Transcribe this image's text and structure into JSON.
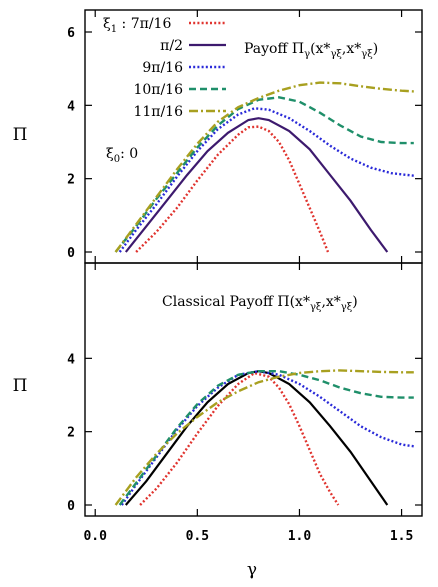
{
  "chart_data": [
    {
      "type": "line",
      "panel": "top",
      "title": "Payoff Π_γ(x*_γξ, x*_γξ)",
      "title_parts": {
        "main": "Payoff Π",
        "sub1": "γ",
        "args": "(x*",
        "sub2": "γξ",
        "mid": ",x*",
        "sub3": "γξ",
        "end": ")"
      },
      "annotation": {
        "prefix": "ξ",
        "sub": "0",
        "text": ": 0"
      },
      "xlabel": "γ",
      "ylabel": "Π",
      "xlim": [
        -0.05,
        1.6
      ],
      "ylim": [
        -0.3,
        6.6
      ],
      "yticks": [
        "0",
        "2",
        "4",
        "6"
      ],
      "legend_title": {
        "prefix": "ξ",
        "sub": "1",
        "text": " : 7π/16"
      },
      "legend_placement": "top-left",
      "series": [
        {
          "name": "7π/16",
          "color": "#e0342f",
          "style": "dotted",
          "points": [
            [
              0.2,
              0
            ],
            [
              0.3,
              0.55
            ],
            [
              0.4,
              1.2
            ],
            [
              0.5,
              1.95
            ],
            [
              0.6,
              2.65
            ],
            [
              0.7,
              3.2
            ],
            [
              0.75,
              3.4
            ],
            [
              0.8,
              3.42
            ],
            [
              0.85,
              3.3
            ],
            [
              0.9,
              3.0
            ],
            [
              0.95,
              2.5
            ],
            [
              1.0,
              1.85
            ],
            [
              1.05,
              1.2
            ],
            [
              1.1,
              0.55
            ],
            [
              1.14,
              0
            ]
          ]
        },
        {
          "name": "π/2",
          "color": "#3d1a6e",
          "style": "solid",
          "points": [
            [
              0.15,
              0
            ],
            [
              0.25,
              0.7
            ],
            [
              0.35,
              1.4
            ],
            [
              0.45,
              2.1
            ],
            [
              0.55,
              2.75
            ],
            [
              0.65,
              3.25
            ],
            [
              0.75,
              3.6
            ],
            [
              0.8,
              3.65
            ],
            [
              0.85,
              3.6
            ],
            [
              0.95,
              3.3
            ],
            [
              1.05,
              2.8
            ],
            [
              1.15,
              2.1
            ],
            [
              1.25,
              1.4
            ],
            [
              1.35,
              0.6
            ],
            [
              1.43,
              0
            ]
          ]
        },
        {
          "name": "9π/16",
          "color": "#2a2ad8",
          "style": "dotted",
          "points": [
            [
              0.12,
              0
            ],
            [
              0.2,
              0.6
            ],
            [
              0.3,
              1.3
            ],
            [
              0.4,
              2.05
            ],
            [
              0.5,
              2.75
            ],
            [
              0.6,
              3.35
            ],
            [
              0.7,
              3.75
            ],
            [
              0.78,
              3.92
            ],
            [
              0.85,
              3.88
            ],
            [
              0.95,
              3.65
            ],
            [
              1.05,
              3.3
            ],
            [
              1.15,
              2.9
            ],
            [
              1.25,
              2.55
            ],
            [
              1.35,
              2.3
            ],
            [
              1.45,
              2.15
            ],
            [
              1.56,
              2.08
            ]
          ]
        },
        {
          "name": "10π/16",
          "color": "#1f8f6a",
          "style": "dashed",
          "points": [
            [
              0.1,
              0
            ],
            [
              0.2,
              0.7
            ],
            [
              0.3,
              1.45
            ],
            [
              0.4,
              2.15
            ],
            [
              0.5,
              2.85
            ],
            [
              0.6,
              3.45
            ],
            [
              0.7,
              3.9
            ],
            [
              0.8,
              4.15
            ],
            [
              0.9,
              4.22
            ],
            [
              1.0,
              4.1
            ],
            [
              1.1,
              3.8
            ],
            [
              1.2,
              3.45
            ],
            [
              1.3,
              3.15
            ],
            [
              1.4,
              3.0
            ],
            [
              1.5,
              2.97
            ],
            [
              1.56,
              2.97
            ]
          ]
        },
        {
          "name": "11π/16",
          "color": "#a8a020",
          "style": "dashdot",
          "points": [
            [
              0.1,
              0
            ],
            [
              0.2,
              0.75
            ],
            [
              0.3,
              1.5
            ],
            [
              0.4,
              2.25
            ],
            [
              0.5,
              2.95
            ],
            [
              0.6,
              3.55
            ],
            [
              0.7,
              3.95
            ],
            [
              0.8,
              4.2
            ],
            [
              0.9,
              4.4
            ],
            [
              1.0,
              4.55
            ],
            [
              1.1,
              4.62
            ],
            [
              1.2,
              4.6
            ],
            [
              1.3,
              4.52
            ],
            [
              1.4,
              4.45
            ],
            [
              1.5,
              4.4
            ],
            [
              1.56,
              4.38
            ]
          ]
        }
      ]
    },
    {
      "type": "line",
      "panel": "bottom",
      "title": "Classical Payoff Π(x*_γξ, x*_γξ)",
      "title_parts": {
        "main": "Classical Payoff Π",
        "args": "(x*",
        "sub2": "γξ",
        "mid": ",x*",
        "sub3": "γξ",
        "end": ")"
      },
      "xlabel": "γ",
      "ylabel": "Π",
      "xlim": [
        -0.05,
        1.6
      ],
      "ylim": [
        -0.3,
        6.6
      ],
      "yticks": [
        "0",
        "2",
        "4"
      ],
      "xticks": [
        "0.0",
        "0.5",
        "1.0",
        "1.5"
      ],
      "series": [
        {
          "name": "7π/16",
          "color": "#e0342f",
          "style": "dotted",
          "points": [
            [
              0.22,
              0
            ],
            [
              0.3,
              0.45
            ],
            [
              0.4,
              1.15
            ],
            [
              0.5,
              1.95
            ],
            [
              0.6,
              2.7
            ],
            [
              0.7,
              3.3
            ],
            [
              0.78,
              3.6
            ],
            [
              0.85,
              3.5
            ],
            [
              0.9,
              3.2
            ],
            [
              0.95,
              2.75
            ],
            [
              1.0,
              2.15
            ],
            [
              1.05,
              1.5
            ],
            [
              1.1,
              0.85
            ],
            [
              1.15,
              0.35
            ],
            [
              1.19,
              0
            ]
          ]
        },
        {
          "name": "π/2",
          "color": "#000000",
          "style": "solid",
          "points": [
            [
              0.15,
              0
            ],
            [
              0.25,
              0.65
            ],
            [
              0.35,
              1.4
            ],
            [
              0.45,
              2.15
            ],
            [
              0.55,
              2.8
            ],
            [
              0.65,
              3.3
            ],
            [
              0.75,
              3.6
            ],
            [
              0.8,
              3.65
            ],
            [
              0.85,
              3.6
            ],
            [
              0.95,
              3.3
            ],
            [
              1.05,
              2.8
            ],
            [
              1.15,
              2.15
            ],
            [
              1.25,
              1.45
            ],
            [
              1.35,
              0.65
            ],
            [
              1.43,
              0
            ]
          ]
        },
        {
          "name": "9π/16",
          "color": "#2a2ad8",
          "style": "dotted",
          "points": [
            [
              0.13,
              0
            ],
            [
              0.2,
              0.55
            ],
            [
              0.3,
              1.3
            ],
            [
              0.4,
              2.05
            ],
            [
              0.5,
              2.7
            ],
            [
              0.6,
              3.2
            ],
            [
              0.7,
              3.55
            ],
            [
              0.8,
              3.65
            ],
            [
              0.9,
              3.55
            ],
            [
              1.0,
              3.3
            ],
            [
              1.1,
              2.95
            ],
            [
              1.2,
              2.55
            ],
            [
              1.3,
              2.15
            ],
            [
              1.4,
              1.85
            ],
            [
              1.5,
              1.65
            ],
            [
              1.56,
              1.6
            ]
          ]
        },
        {
          "name": "10π/16",
          "color": "#1f8f6a",
          "style": "dashed",
          "points": [
            [
              0.12,
              0
            ],
            [
              0.2,
              0.6
            ],
            [
              0.3,
              1.35
            ],
            [
              0.4,
              2.1
            ],
            [
              0.5,
              2.75
            ],
            [
              0.6,
              3.25
            ],
            [
              0.7,
              3.55
            ],
            [
              0.8,
              3.65
            ],
            [
              0.9,
              3.65
            ],
            [
              1.0,
              3.55
            ],
            [
              1.1,
              3.4
            ],
            [
              1.2,
              3.2
            ],
            [
              1.3,
              3.05
            ],
            [
              1.4,
              2.95
            ],
            [
              1.5,
              2.93
            ],
            [
              1.56,
              2.93
            ]
          ]
        },
        {
          "name": "11π/16",
          "color": "#a8a020",
          "style": "dashdot",
          "points": [
            [
              0.1,
              0
            ],
            [
              0.2,
              0.75
            ],
            [
              0.3,
              1.4
            ],
            [
              0.4,
              1.95
            ],
            [
              0.5,
              2.4
            ],
            [
              0.6,
              2.8
            ],
            [
              0.7,
              3.1
            ],
            [
              0.8,
              3.35
            ],
            [
              0.9,
              3.5
            ],
            [
              1.0,
              3.6
            ],
            [
              1.1,
              3.65
            ],
            [
              1.2,
              3.67
            ],
            [
              1.3,
              3.65
            ],
            [
              1.4,
              3.63
            ],
            [
              1.5,
              3.62
            ],
            [
              1.56,
              3.62
            ]
          ]
        }
      ]
    }
  ]
}
